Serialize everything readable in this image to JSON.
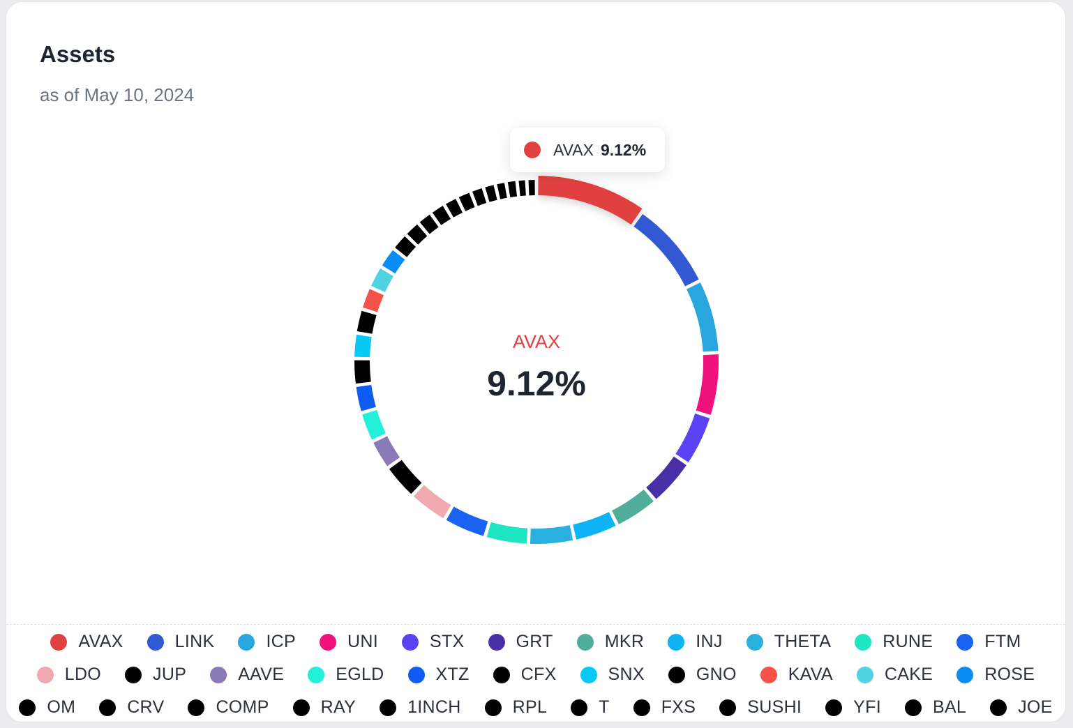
{
  "card": {
    "title": "Assets",
    "subtitle": "as of May 10, 2024"
  },
  "tooltip": {
    "label": "AVAX",
    "value": "9.12%",
    "color": "#e04141"
  },
  "center": {
    "label": "AVAX",
    "value": "9.12%",
    "color": "#e04141"
  },
  "chart_data": {
    "type": "pie",
    "title": "Assets",
    "subtitle": "as of May 10, 2024",
    "unit": "%",
    "highlighted": "AVAX",
    "legend_position": "bottom",
    "slices": [
      {
        "label": "AVAX",
        "value": 9.12,
        "color": "#e04141"
      },
      {
        "label": "LINK",
        "value": 7.4,
        "color": "#3358d4"
      },
      {
        "label": "ICP",
        "value": 6.1,
        "color": "#27a7de"
      },
      {
        "label": "UNI",
        "value": 5.3,
        "color": "#f0107e"
      },
      {
        "label": "STX",
        "value": 4.3,
        "color": "#5b43f5"
      },
      {
        "label": "GRT",
        "value": 4.0,
        "color": "#4a2ea8"
      },
      {
        "label": "MKR",
        "value": 3.7,
        "color": "#50ad9a"
      },
      {
        "label": "INJ",
        "value": 3.7,
        "color": "#0eb3f5"
      },
      {
        "label": "THETA",
        "value": 3.8,
        "color": "#2ab0e0"
      },
      {
        "label": "RUNE",
        "value": 3.6,
        "color": "#1ee5c2"
      },
      {
        "label": "FTM",
        "value": 3.6,
        "color": "#1a63f0"
      },
      {
        "label": "LDO",
        "value": 3.3,
        "color": "#f0a9b0"
      },
      {
        "label": "JUP",
        "value": 3.0,
        "color": "#000000"
      },
      {
        "label": "AAVE",
        "value": 2.5,
        "color": "#8c7ab8"
      },
      {
        "label": "EGLD",
        "value": 2.5,
        "color": "#22f0d8"
      },
      {
        "label": "XTZ",
        "value": 2.3,
        "color": "#0f5cf2"
      },
      {
        "label": "CFX",
        "value": 2.2,
        "color": "#000000"
      },
      {
        "label": "SNX",
        "value": 2.1,
        "color": "#08c8f5"
      },
      {
        "label": "GNO",
        "value": 2.0,
        "color": "#000000"
      },
      {
        "label": "KAVA",
        "value": 1.9,
        "color": "#f5524a"
      },
      {
        "label": "CAKE",
        "value": 1.9,
        "color": "#4fd3e3"
      },
      {
        "label": "ROSE",
        "value": 1.8,
        "color": "#0a8cf5"
      },
      {
        "label": "OM",
        "value": 1.5,
        "color": "#000000"
      },
      {
        "label": "CRV",
        "value": 1.4,
        "color": "#000000"
      },
      {
        "label": "COMP",
        "value": 1.3,
        "color": "#000000"
      },
      {
        "label": "RAY",
        "value": 1.3,
        "color": "#000000"
      },
      {
        "label": "1INCH",
        "value": 1.2,
        "color": "#000000"
      },
      {
        "label": "RPL",
        "value": 1.2,
        "color": "#000000"
      },
      {
        "label": "T",
        "value": 1.1,
        "color": "#000000"
      },
      {
        "label": "FXS",
        "value": 1.0,
        "color": "#000000"
      },
      {
        "label": "SUSHI",
        "value": 0.9,
        "color": "#000000"
      },
      {
        "label": "YFI",
        "value": 0.9,
        "color": "#000000"
      },
      {
        "label": "BAL",
        "value": 0.8,
        "color": "#000000"
      },
      {
        "label": "JOE",
        "value": 0.8,
        "color": "#000000"
      }
    ]
  }
}
